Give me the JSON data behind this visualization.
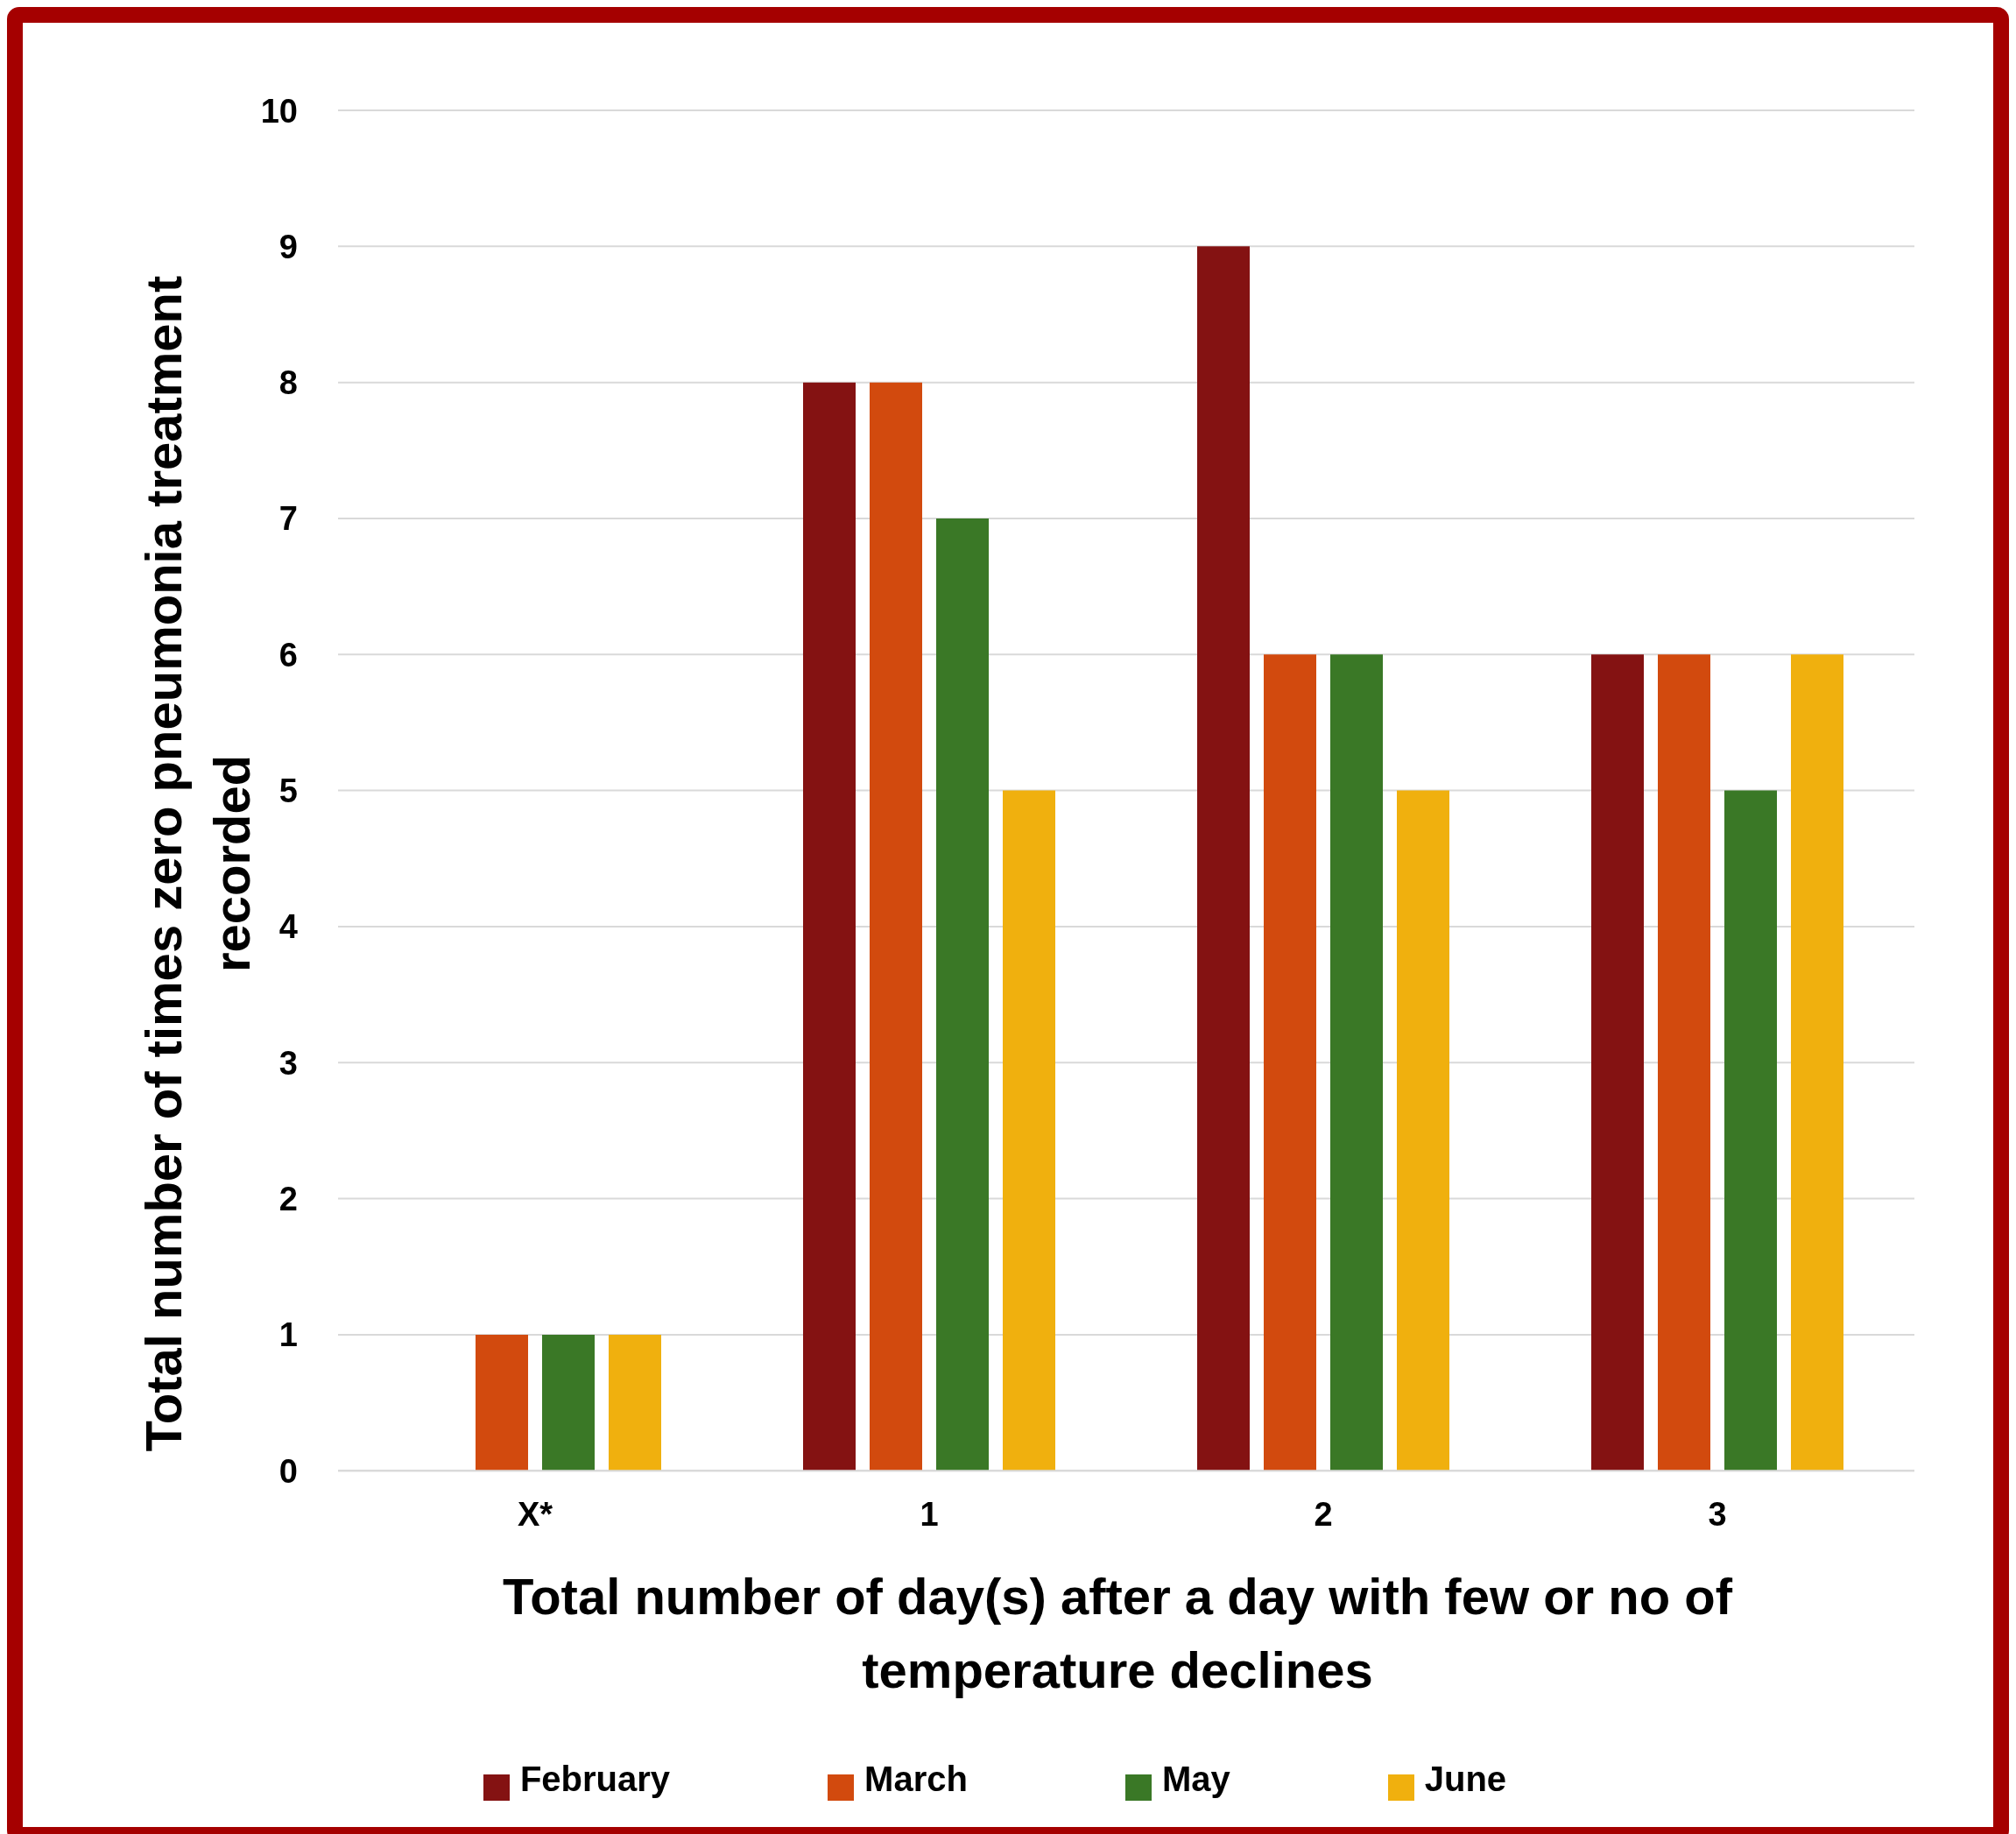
{
  "chart_data": {
    "type": "bar",
    "xlabel": "Total number of day(s) after a day with few or no of temperature declines",
    "ylabel": "Total number of times zero pneumonia treatment recorded",
    "categories": [
      "X*",
      "1",
      "2",
      "3"
    ],
    "series": [
      {
        "name": "February",
        "color": "#841212",
        "values": [
          0,
          8,
          9,
          6
        ]
      },
      {
        "name": "March",
        "color": "#d24a0e",
        "values": [
          1,
          8,
          6,
          6
        ]
      },
      {
        "name": "May",
        "color": "#3a7826",
        "values": [
          1,
          7,
          6,
          5
        ]
      },
      {
        "name": "June",
        "color": "#f0b00e",
        "values": [
          1,
          5,
          5,
          6
        ]
      }
    ],
    "ylim": [
      0,
      10
    ],
    "yticks": [
      0,
      1,
      2,
      3,
      4,
      5,
      6,
      7,
      8,
      9,
      10
    ],
    "grid": "y",
    "legend": "bottom"
  }
}
